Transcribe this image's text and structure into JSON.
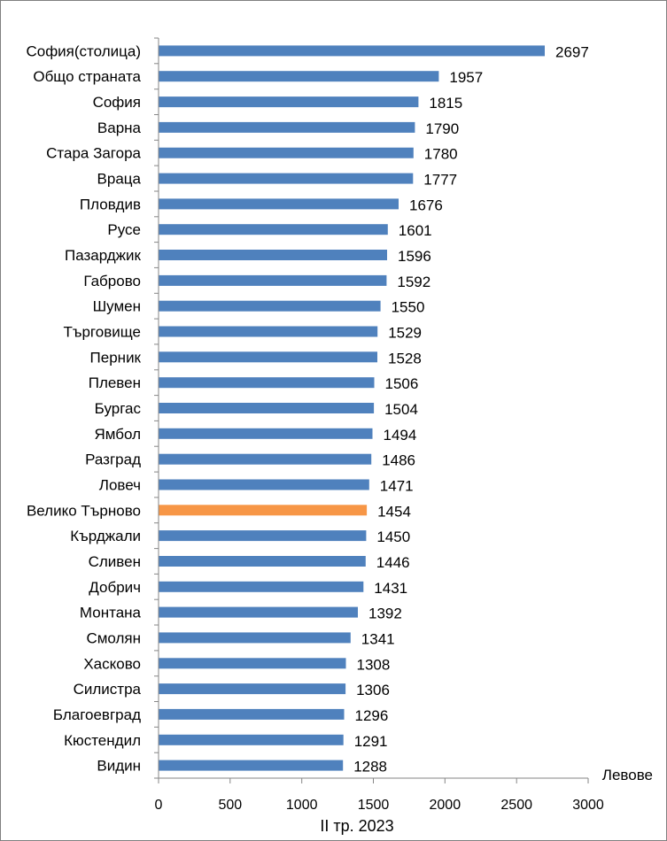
{
  "chart_data": {
    "type": "bar",
    "orientation": "horizontal",
    "categories": [
      "София(столица)",
      "Общо страната",
      "София",
      "Варна",
      "Стара Загора",
      "Враца",
      "Пловдив",
      "Русе",
      "Пазарджик",
      "Габрово",
      "Шумен",
      "Търговище",
      "Перник",
      "Плевен",
      "Бургас",
      "Ямбол",
      "Разград",
      "Ловеч",
      "Велико Търново",
      "Кърджали",
      "Сливен",
      "Добрич",
      "Монтана",
      "Смолян",
      "Хасково",
      "Силистра",
      "Благоевград",
      "Кюстендил",
      "Видин"
    ],
    "values": [
      2697,
      1957,
      1815,
      1790,
      1780,
      1777,
      1676,
      1601,
      1596,
      1592,
      1550,
      1529,
      1528,
      1506,
      1504,
      1494,
      1486,
      1471,
      1454,
      1450,
      1446,
      1431,
      1392,
      1341,
      1308,
      1306,
      1296,
      1291,
      1288
    ],
    "highlight_index": 18,
    "colors": {
      "default": "#4f81bd",
      "highlight": "#f79646"
    },
    "xlim": [
      0,
      3000
    ],
    "xticks": [
      0,
      500,
      1000,
      1500,
      2000,
      2500,
      3000
    ],
    "xlabel": "II тр. 2023",
    "unit_label": "Левове",
    "grid": false,
    "legend": "none"
  }
}
